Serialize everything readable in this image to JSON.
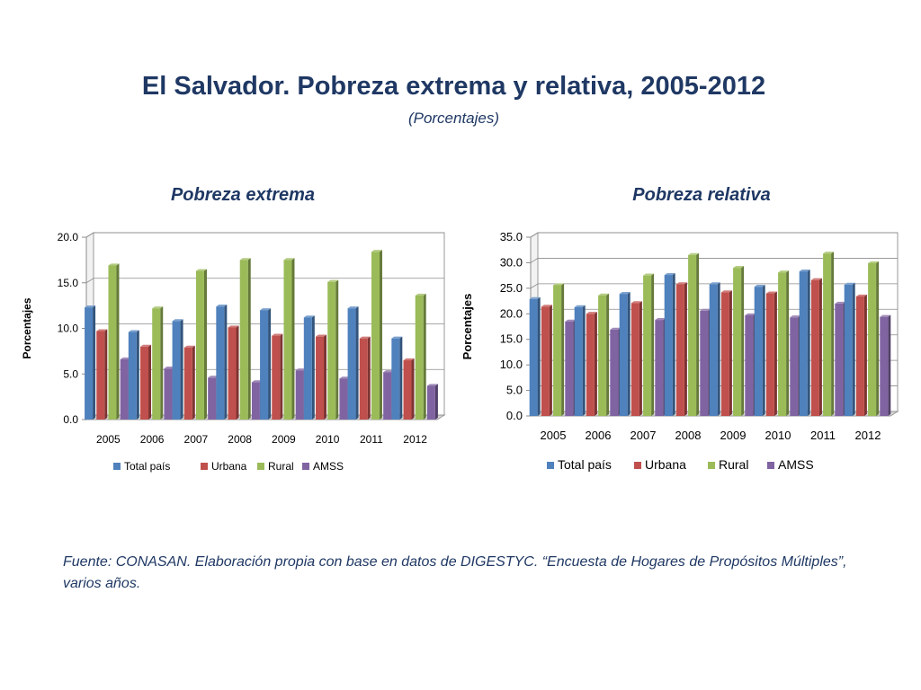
{
  "title": "El Salvador. Pobreza extrema y relativa, 2005-2012",
  "subtitle": "(Porcentajes)",
  "source": "Fuente: CONASAN. Elaboración propia con base en datos de DIGESTYC. “Encuesta de Hogares de Propósitos Múltiples”, varios años.",
  "colors": {
    "Total país": "#4f81bd",
    "Urbana": "#c0504d",
    "Rural": "#9bbb59",
    "AMSS": "#8064a2"
  },
  "chart_data": [
    {
      "type": "bar",
      "title": "Pobreza extrema",
      "ylabel": "Porcentajes",
      "xlabel": "",
      "ylim": [
        0,
        20
      ],
      "ytick_step": 5,
      "categories": [
        "2005",
        "2006",
        "2007",
        "2008",
        "2009",
        "2010",
        "2011",
        "2012"
      ],
      "legend_position": "bottom",
      "series": [
        {
          "name": "Total país",
          "values": [
            12.3,
            9.6,
            10.8,
            12.4,
            12.0,
            11.2,
            12.2,
            8.9
          ]
        },
        {
          "name": "Urbana",
          "values": [
            9.7,
            8.0,
            7.9,
            10.1,
            9.2,
            9.1,
            8.9,
            6.5
          ]
        },
        {
          "name": "Rural",
          "values": [
            16.9,
            12.2,
            16.3,
            17.5,
            17.5,
            15.1,
            18.4,
            13.6
          ]
        },
        {
          "name": "AMSS",
          "values": [
            6.6,
            5.6,
            4.6,
            4.1,
            5.4,
            4.5,
            5.2,
            3.7
          ]
        }
      ]
    },
    {
      "type": "bar",
      "title": "Pobreza relativa",
      "ylabel": "Porcentajes",
      "xlabel": "",
      "ylim": [
        0,
        35
      ],
      "ytick_step": 5,
      "categories": [
        "2005",
        "2006",
        "2007",
        "2008",
        "2009",
        "2010",
        "2011",
        "2012"
      ],
      "legend_position": "bottom",
      "series": [
        {
          "name": "Total país",
          "values": [
            22.9,
            21.3,
            23.9,
            27.6,
            25.8,
            25.3,
            28.3,
            25.7
          ]
        },
        {
          "name": "Urbana",
          "values": [
            21.4,
            20.0,
            22.1,
            25.8,
            24.2,
            24.0,
            26.6,
            23.4
          ]
        },
        {
          "name": "Rural",
          "values": [
            25.6,
            23.6,
            27.5,
            31.5,
            29.0,
            28.1,
            31.8,
            29.9
          ]
        },
        {
          "name": "AMSS",
          "values": [
            18.5,
            16.9,
            18.8,
            20.6,
            19.7,
            19.3,
            22.0,
            19.4
          ]
        }
      ]
    }
  ]
}
